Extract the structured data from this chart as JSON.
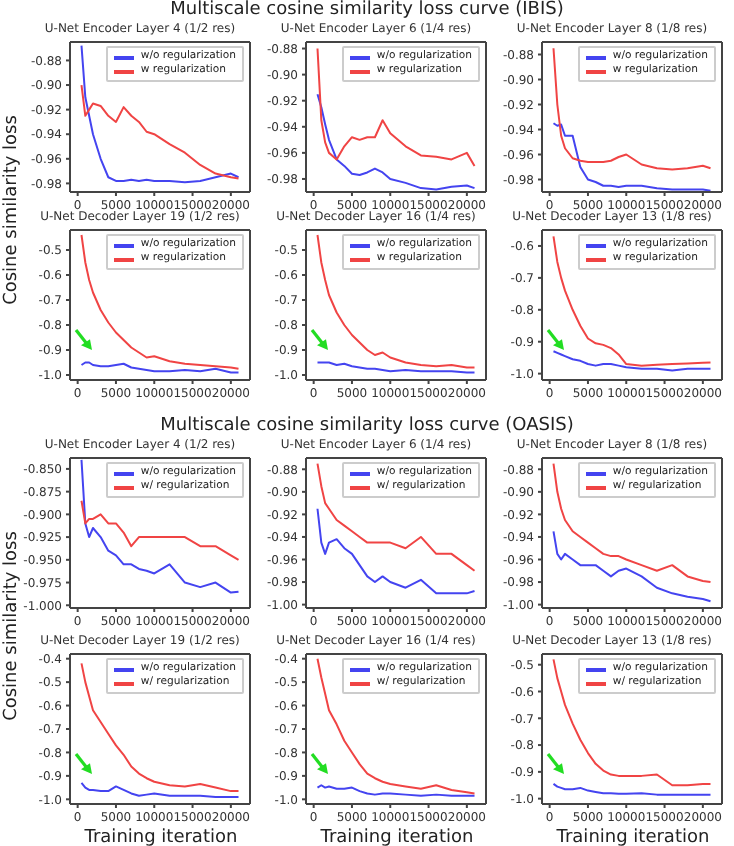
{
  "chart_data": [
    {
      "type": "line",
      "title": "U-Net Encoder Layer 4 (1/2 res)",
      "annotations": [
        "Multiscale cosine similarity loss curve (IBIS)"
      ],
      "ylabel": "Cosine similarity loss",
      "legend": "top right",
      "x": [
        500,
        1000,
        1500,
        2000,
        3000,
        4000,
        5000,
        6000,
        7000,
        8000,
        9000,
        10000,
        12000,
        14000,
        16000,
        18000,
        20000,
        21000
      ],
      "xlim": [
        -1000,
        22500
      ],
      "xticks": [
        0,
        5000,
        10000,
        15000,
        20000
      ],
      "ylim": [
        -0.987,
        -0.865
      ],
      "yticks": [
        -0.98,
        -0.96,
        -0.94,
        -0.92,
        {
          "value": -0.9,
          "label": "-0.90"
        },
        -0.88
      ],
      "series": [
        {
          "name": "w/o regularization",
          "color": "#4444f0",
          "values": [
            -0.868,
            -0.91,
            -0.925,
            -0.94,
            -0.96,
            -0.975,
            -0.978,
            -0.978,
            -0.977,
            -0.978,
            -0.977,
            -0.978,
            -0.978,
            -0.979,
            -0.978,
            -0.975,
            -0.972,
            -0.975
          ]
        },
        {
          "name": "w regularization",
          "color": "#f04444",
          "values": [
            -0.9,
            -0.925,
            -0.92,
            -0.915,
            -0.917,
            -0.925,
            -0.93,
            -0.918,
            -0.925,
            -0.93,
            -0.938,
            -0.94,
            -0.948,
            -0.955,
            -0.965,
            -0.972,
            -0.975,
            -0.976
          ]
        }
      ]
    },
    {
      "type": "line",
      "title": "U-Net Encoder Layer 6 (1/4 res)",
      "legend": "top right",
      "x": [
        500,
        1000,
        1500,
        2000,
        3000,
        4000,
        5000,
        6000,
        7000,
        8000,
        9000,
        10000,
        12000,
        14000,
        16000,
        18000,
        20000,
        21000
      ],
      "xlim": [
        -1000,
        22500
      ],
      "xticks": [
        0,
        5000,
        10000,
        15000,
        20000
      ],
      "ylim": [
        -0.99,
        -0.875
      ],
      "yticks": [
        -0.98,
        -0.96,
        -0.94,
        -0.92,
        {
          "value": -0.9,
          "label": "-0.90"
        },
        -0.88
      ],
      "series": [
        {
          "name": "w/o regularization",
          "color": "#4444f0",
          "values": [
            -0.915,
            -0.925,
            -0.938,
            -0.95,
            -0.965,
            -0.97,
            -0.976,
            -0.977,
            -0.975,
            -0.972,
            -0.975,
            -0.98,
            -0.983,
            -0.987,
            -0.988,
            -0.986,
            -0.985,
            -0.987
          ]
        },
        {
          "name": "w regularization",
          "color": "#f04444",
          "values": [
            -0.88,
            -0.935,
            -0.952,
            -0.96,
            -0.965,
            -0.955,
            -0.948,
            -0.95,
            -0.948,
            -0.948,
            -0.935,
            -0.945,
            -0.955,
            -0.962,
            -0.963,
            -0.965,
            -0.96,
            -0.97
          ]
        }
      ]
    },
    {
      "type": "line",
      "title": "U-Net Encoder Layer 8 (1/8 res)",
      "legend": "top right",
      "x": [
        500,
        1000,
        1500,
        2000,
        3000,
        4000,
        5000,
        6000,
        7000,
        8000,
        9000,
        10000,
        12000,
        14000,
        16000,
        18000,
        20000,
        21000
      ],
      "xlim": [
        -1000,
        22500
      ],
      "xticks": [
        0,
        5000,
        10000,
        15000,
        20000
      ],
      "ylim": [
        -0.99,
        -0.87
      ],
      "yticks": [
        -0.98,
        -0.96,
        -0.94,
        -0.92,
        {
          "value": -0.9,
          "label": "-0.90"
        },
        -0.88
      ],
      "series": [
        {
          "name": "w/o regularization",
          "color": "#4444f0",
          "values": [
            -0.935,
            -0.937,
            -0.936,
            -0.945,
            -0.945,
            -0.97,
            -0.98,
            -0.982,
            -0.985,
            -0.985,
            -0.986,
            -0.985,
            -0.985,
            -0.987,
            -0.988,
            -0.988,
            -0.988,
            -0.989
          ]
        },
        {
          "name": "w regularization",
          "color": "#f04444",
          "values": [
            -0.875,
            -0.92,
            -0.945,
            -0.955,
            -0.963,
            -0.965,
            -0.966,
            -0.966,
            -0.966,
            -0.965,
            -0.962,
            -0.96,
            -0.968,
            -0.971,
            -0.972,
            -0.971,
            -0.969,
            -0.971
          ]
        }
      ]
    },
    {
      "type": "line",
      "title": "U-Net Decoder Layer 19 (1/2 res)",
      "legend": "top right",
      "x": [
        500,
        1000,
        1500,
        2000,
        3000,
        4000,
        5000,
        6000,
        7000,
        8000,
        9000,
        10000,
        12000,
        14000,
        16000,
        18000,
        20000,
        21000
      ],
      "xlim": [
        -1000,
        22500
      ],
      "xticks": [
        0,
        5000,
        10000,
        15000,
        20000
      ],
      "ylim": [
        -1.02,
        -0.42
      ],
      "yticks": [
        {
          "value": -1,
          "label": "-1.0"
        },
        -0.9,
        -0.8,
        -0.7,
        -0.6,
        -0.5
      ],
      "series": [
        {
          "name": "w/o regularization",
          "color": "#4444f0",
          "values": [
            -0.96,
            -0.95,
            -0.95,
            -0.96,
            -0.965,
            -0.965,
            -0.96,
            -0.955,
            -0.97,
            -0.975,
            -0.98,
            -0.985,
            -0.985,
            -0.98,
            -0.985,
            -0.975,
            -0.99,
            -0.99
          ]
        },
        {
          "name": "w regularization",
          "color": "#f04444",
          "values": [
            -0.44,
            -0.55,
            -0.62,
            -0.67,
            -0.74,
            -0.79,
            -0.83,
            -0.86,
            -0.89,
            -0.91,
            -0.93,
            -0.925,
            -0.945,
            -0.955,
            -0.96,
            -0.965,
            -0.97,
            -0.975
          ]
        }
      ]
    },
    {
      "type": "line",
      "title": "U-Net Decoder Layer 16 (1/4 res)",
      "legend": "top right",
      "x": [
        500,
        1000,
        1500,
        2000,
        3000,
        4000,
        5000,
        6000,
        7000,
        8000,
        9000,
        10000,
        12000,
        14000,
        16000,
        18000,
        20000,
        21000
      ],
      "xlim": [
        -1000,
        22500
      ],
      "xticks": [
        0,
        5000,
        10000,
        15000,
        20000
      ],
      "ylim": [
        -1.02,
        -0.42
      ],
      "yticks": [
        {
          "value": -1,
          "label": "-1.0"
        },
        -0.9,
        -0.8,
        -0.7,
        -0.6,
        -0.5
      ],
      "series": [
        {
          "name": "w/o regularization",
          "color": "#4444f0",
          "values": [
            -0.95,
            -0.95,
            -0.95,
            -0.95,
            -0.96,
            -0.955,
            -0.965,
            -0.97,
            -0.975,
            -0.975,
            -0.98,
            -0.985,
            -0.98,
            -0.985,
            -0.985,
            -0.985,
            -0.99,
            -0.99
          ]
        },
        {
          "name": "w regularization",
          "color": "#f04444",
          "values": [
            -0.44,
            -0.55,
            -0.62,
            -0.68,
            -0.75,
            -0.8,
            -0.84,
            -0.87,
            -0.9,
            -0.92,
            -0.91,
            -0.93,
            -0.95,
            -0.96,
            -0.965,
            -0.96,
            -0.97,
            -0.97
          ]
        }
      ]
    },
    {
      "type": "line",
      "title": "U-Net Decoder Layer 13 (1/8 res)",
      "legend": "top right",
      "x": [
        500,
        1000,
        1500,
        2000,
        3000,
        4000,
        5000,
        6000,
        7000,
        8000,
        9000,
        10000,
        12000,
        14000,
        16000,
        18000,
        20000,
        21000
      ],
      "xlim": [
        -1000,
        22500
      ],
      "xticks": [
        0,
        5000,
        10000,
        15000,
        20000
      ],
      "ylim": [
        -1.02,
        -0.55
      ],
      "yticks": [
        {
          "value": -1,
          "label": "-1.0"
        },
        -0.9,
        -0.8,
        -0.7,
        -0.6
      ],
      "series": [
        {
          "name": "w/o regularization",
          "color": "#4444f0",
          "values": [
            -0.93,
            -0.935,
            -0.94,
            -0.945,
            -0.955,
            -0.96,
            -0.97,
            -0.975,
            -0.97,
            -0.97,
            -0.975,
            -0.98,
            -0.985,
            -0.985,
            -0.99,
            -0.985,
            -0.985,
            -0.985
          ]
        },
        {
          "name": "w regularization",
          "color": "#f04444",
          "values": [
            -0.57,
            -0.65,
            -0.7,
            -0.74,
            -0.8,
            -0.85,
            -0.89,
            -0.905,
            -0.91,
            -0.92,
            -0.94,
            -0.97,
            -0.975,
            -0.972,
            -0.97,
            -0.968,
            -0.966,
            -0.965
          ]
        }
      ]
    },
    {
      "type": "line",
      "title": "U-Net Encoder Layer 4 (1/2 res)",
      "annotations": [
        "Multiscale cosine similarity loss curve (OASIS)"
      ],
      "ylabel": "Cosine similarity loss",
      "legend": "top right",
      "x": [
        500,
        1000,
        1500,
        2000,
        3000,
        4000,
        5000,
        6000,
        7000,
        8000,
        9000,
        10000,
        12000,
        14000,
        16000,
        18000,
        20000,
        21000
      ],
      "xlim": [
        -1000,
        22500
      ],
      "xticks": [
        0,
        5000,
        10000,
        15000,
        20000
      ],
      "ylim": [
        -1.003,
        -0.838
      ],
      "yticks": [
        {
          "value": -1,
          "label": "-1.000"
        },
        -0.975,
        {
          "value": -0.95,
          "label": "-0.950"
        },
        -0.925,
        {
          "value": -0.9,
          "label": "-0.900"
        },
        -0.875,
        {
          "value": -0.85,
          "label": "-0.850"
        }
      ],
      "series": [
        {
          "name": "w/o regularization",
          "color": "#4444f0",
          "values": [
            -0.84,
            -0.91,
            -0.925,
            -0.915,
            -0.925,
            -0.94,
            -0.945,
            -0.955,
            -0.955,
            -0.96,
            -0.962,
            -0.965,
            -0.955,
            -0.975,
            -0.98,
            -0.975,
            -0.986,
            -0.985
          ]
        },
        {
          "name": "w/ regularization",
          "color": "#f04444",
          "values": [
            -0.885,
            -0.91,
            -0.905,
            -0.905,
            -0.9,
            -0.91,
            -0.91,
            -0.92,
            -0.935,
            -0.925,
            -0.925,
            -0.925,
            -0.925,
            -0.925,
            -0.935,
            -0.935,
            -0.945,
            -0.95
          ]
        }
      ]
    },
    {
      "type": "line",
      "title": "U-Net Encoder Layer 6 (1/4 res)",
      "legend": "top right",
      "x": [
        500,
        1000,
        1500,
        2000,
        3000,
        4000,
        5000,
        6000,
        7000,
        8000,
        9000,
        10000,
        12000,
        14000,
        16000,
        18000,
        20000,
        21000
      ],
      "xlim": [
        -1000,
        22500
      ],
      "xticks": [
        0,
        5000,
        10000,
        15000,
        20000
      ],
      "ylim": [
        -1.003,
        -0.87
      ],
      "yticks": [
        {
          "value": -1,
          "label": "-1.00"
        },
        -0.98,
        -0.96,
        -0.94,
        -0.92,
        {
          "value": -0.9,
          "label": "-0.90"
        },
        -0.88
      ],
      "series": [
        {
          "name": "w/o regularization",
          "color": "#4444f0",
          "values": [
            -0.915,
            -0.945,
            -0.955,
            -0.945,
            -0.942,
            -0.95,
            -0.955,
            -0.965,
            -0.975,
            -0.98,
            -0.975,
            -0.98,
            -0.985,
            -0.978,
            -0.99,
            -0.99,
            -0.99,
            -0.988
          ]
        },
        {
          "name": "w/ regularization",
          "color": "#f04444",
          "values": [
            -0.875,
            -0.895,
            -0.91,
            -0.915,
            -0.925,
            -0.93,
            -0.935,
            -0.94,
            -0.945,
            -0.945,
            -0.945,
            -0.945,
            -0.95,
            -0.94,
            -0.955,
            -0.955,
            -0.965,
            -0.97
          ]
        }
      ]
    },
    {
      "type": "line",
      "title": "U-Net Encoder Layer 8 (1/8 res)",
      "legend": "top right",
      "x": [
        500,
        1000,
        1500,
        2000,
        3000,
        4000,
        5000,
        6000,
        7000,
        8000,
        9000,
        10000,
        12000,
        14000,
        16000,
        18000,
        20000,
        21000
      ],
      "xlim": [
        -1000,
        22500
      ],
      "xticks": [
        0,
        5000,
        10000,
        15000,
        20000
      ],
      "ylim": [
        -1.003,
        -0.87
      ],
      "yticks": [
        {
          "value": -1,
          "label": "-1.00"
        },
        -0.98,
        -0.96,
        -0.94,
        -0.92,
        {
          "value": -0.9,
          "label": "-0.90"
        },
        -0.88
      ],
      "series": [
        {
          "name": "w/o regularization",
          "color": "#4444f0",
          "values": [
            -0.935,
            -0.955,
            -0.96,
            -0.955,
            -0.96,
            -0.965,
            -0.965,
            -0.965,
            -0.97,
            -0.975,
            -0.97,
            -0.968,
            -0.975,
            -0.985,
            -0.99,
            -0.993,
            -0.995,
            -0.997
          ]
        },
        {
          "name": "w/ regularization",
          "color": "#f04444",
          "values": [
            -0.875,
            -0.9,
            -0.915,
            -0.925,
            -0.935,
            -0.94,
            -0.945,
            -0.95,
            -0.955,
            -0.957,
            -0.957,
            -0.96,
            -0.965,
            -0.97,
            -0.965,
            -0.975,
            -0.979,
            -0.98
          ]
        }
      ]
    },
    {
      "type": "line",
      "title": "U-Net Decoder Layer 19 (1/2 res)",
      "xlabel": "Training iteration",
      "legend": "top right",
      "x": [
        500,
        1000,
        1500,
        2000,
        3000,
        4000,
        5000,
        6000,
        7000,
        8000,
        9000,
        10000,
        12000,
        14000,
        16000,
        18000,
        20000,
        21000
      ],
      "xlim": [
        -1000,
        22500
      ],
      "xticks": [
        0,
        5000,
        10000,
        15000,
        20000
      ],
      "ylim": [
        -1.02,
        -0.38
      ],
      "yticks": [
        {
          "value": -1,
          "label": "-1.0"
        },
        -0.9,
        -0.8,
        -0.7,
        -0.6,
        -0.5,
        -0.4
      ],
      "series": [
        {
          "name": "w/o regularization",
          "color": "#4444f0",
          "values": [
            -0.93,
            -0.95,
            -0.96,
            -0.96,
            -0.965,
            -0.965,
            -0.945,
            -0.96,
            -0.975,
            -0.985,
            -0.98,
            -0.975,
            -0.985,
            -0.985,
            -0.985,
            -0.99,
            -0.99,
            -0.99
          ]
        },
        {
          "name": "w/ regularization",
          "color": "#f04444",
          "values": [
            -0.42,
            -0.5,
            -0.56,
            -0.62,
            -0.67,
            -0.72,
            -0.77,
            -0.81,
            -0.86,
            -0.89,
            -0.91,
            -0.925,
            -0.94,
            -0.945,
            -0.935,
            -0.95,
            -0.965,
            -0.965
          ]
        }
      ]
    },
    {
      "type": "line",
      "title": "U-Net Decoder Layer 16 (1/4 res)",
      "xlabel": "Training iteration",
      "legend": "top right",
      "x": [
        500,
        1000,
        1500,
        2000,
        3000,
        4000,
        5000,
        6000,
        7000,
        8000,
        9000,
        10000,
        12000,
        14000,
        16000,
        18000,
        20000,
        21000
      ],
      "xlim": [
        -1000,
        22500
      ],
      "xticks": [
        0,
        5000,
        10000,
        15000,
        20000
      ],
      "ylim": [
        -1.02,
        -0.38
      ],
      "yticks": [
        {
          "value": -1,
          "label": "-1.0"
        },
        -0.9,
        -0.8,
        -0.7,
        -0.6,
        -0.5,
        -0.4
      ],
      "series": [
        {
          "name": "w/o regularization",
          "color": "#4444f0",
          "values": [
            -0.95,
            -0.94,
            -0.95,
            -0.945,
            -0.955,
            -0.955,
            -0.95,
            -0.965,
            -0.975,
            -0.98,
            -0.975,
            -0.975,
            -0.98,
            -0.985,
            -0.98,
            -0.985,
            -0.985,
            -0.985
          ]
        },
        {
          "name": "w/ regularization",
          "color": "#f04444",
          "values": [
            -0.4,
            -0.48,
            -0.55,
            -0.62,
            -0.68,
            -0.75,
            -0.8,
            -0.85,
            -0.89,
            -0.91,
            -0.925,
            -0.935,
            -0.945,
            -0.955,
            -0.94,
            -0.96,
            -0.97,
            -0.975
          ]
        }
      ]
    },
    {
      "type": "line",
      "title": "U-Net Decoder Layer 13 (1/8 res)",
      "xlabel": "Training iteration",
      "legend": "top right",
      "x": [
        500,
        1000,
        1500,
        2000,
        3000,
        4000,
        5000,
        6000,
        7000,
        8000,
        9000,
        10000,
        12000,
        14000,
        16000,
        18000,
        20000,
        21000
      ],
      "xlim": [
        -1000,
        22500
      ],
      "xticks": [
        0,
        5000,
        10000,
        15000,
        20000
      ],
      "ylim": [
        -1.02,
        -0.46
      ],
      "yticks": [
        {
          "value": -1,
          "label": "-1.0"
        },
        -0.9,
        -0.8,
        -0.7,
        -0.6,
        -0.5
      ],
      "series": [
        {
          "name": "w/o regularization",
          "color": "#4444f0",
          "values": [
            -0.945,
            -0.955,
            -0.96,
            -0.965,
            -0.965,
            -0.96,
            -0.97,
            -0.975,
            -0.98,
            -0.98,
            -0.982,
            -0.982,
            -0.98,
            -0.985,
            -0.985,
            -0.985,
            -0.985,
            -0.985
          ]
        },
        {
          "name": "w/ regularization",
          "color": "#f04444",
          "values": [
            -0.48,
            -0.55,
            -0.6,
            -0.65,
            -0.72,
            -0.78,
            -0.83,
            -0.87,
            -0.895,
            -0.91,
            -0.915,
            -0.915,
            -0.915,
            -0.91,
            -0.95,
            -0.95,
            -0.945,
            -0.945
          ]
        }
      ]
    }
  ]
}
